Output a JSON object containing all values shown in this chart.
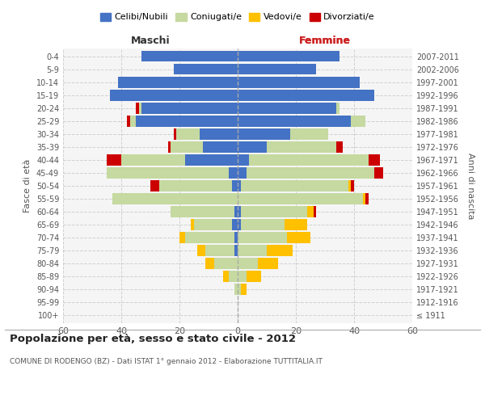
{
  "age_groups": [
    "100+",
    "95-99",
    "90-94",
    "85-89",
    "80-84",
    "75-79",
    "70-74",
    "65-69",
    "60-64",
    "55-59",
    "50-54",
    "45-49",
    "40-44",
    "35-39",
    "30-34",
    "25-29",
    "20-24",
    "15-19",
    "10-14",
    "5-9",
    "0-4"
  ],
  "birth_years": [
    "≤ 1911",
    "1912-1916",
    "1917-1921",
    "1922-1926",
    "1927-1931",
    "1932-1936",
    "1937-1941",
    "1942-1946",
    "1947-1951",
    "1952-1956",
    "1957-1961",
    "1962-1966",
    "1967-1971",
    "1972-1976",
    "1977-1981",
    "1982-1986",
    "1987-1991",
    "1992-1996",
    "1997-2001",
    "2002-2006",
    "2007-2011"
  ],
  "male": {
    "celibi": [
      0,
      0,
      0,
      0,
      0,
      1,
      1,
      2,
      1,
      0,
      2,
      3,
      18,
      12,
      13,
      35,
      33,
      44,
      41,
      22,
      33
    ],
    "coniugati": [
      0,
      0,
      1,
      3,
      8,
      10,
      17,
      13,
      22,
      43,
      25,
      42,
      22,
      11,
      8,
      2,
      1,
      0,
      0,
      0,
      0
    ],
    "vedovi": [
      0,
      0,
      0,
      2,
      3,
      3,
      2,
      1,
      0,
      0,
      0,
      0,
      0,
      0,
      0,
      0,
      0,
      0,
      0,
      0,
      0
    ],
    "divorziati": [
      0,
      0,
      0,
      0,
      0,
      0,
      0,
      0,
      0,
      0,
      3,
      0,
      5,
      1,
      1,
      1,
      1,
      0,
      0,
      0,
      0
    ]
  },
  "female": {
    "nubili": [
      0,
      0,
      0,
      0,
      0,
      0,
      0,
      1,
      1,
      0,
      1,
      3,
      4,
      10,
      18,
      39,
      34,
      47,
      42,
      27,
      35
    ],
    "coniugate": [
      0,
      0,
      1,
      3,
      7,
      10,
      17,
      15,
      23,
      43,
      37,
      44,
      41,
      24,
      13,
      5,
      1,
      0,
      0,
      0,
      0
    ],
    "vedove": [
      0,
      0,
      2,
      5,
      7,
      9,
      8,
      8,
      2,
      1,
      1,
      0,
      0,
      0,
      0,
      0,
      0,
      0,
      0,
      0,
      0
    ],
    "divorziate": [
      0,
      0,
      0,
      0,
      0,
      0,
      0,
      0,
      1,
      1,
      1,
      3,
      4,
      2,
      0,
      0,
      0,
      0,
      0,
      0,
      0
    ]
  },
  "colors": {
    "celibi": "#4472c4",
    "coniugati": "#c5d9a0",
    "vedovi": "#ffc000",
    "divorziati": "#cc0000"
  },
  "xlim": 60,
  "title": "Popolazione per età, sesso e stato civile - 2012",
  "subtitle": "COMUNE DI RODENGO (BZ) - Dati ISTAT 1° gennaio 2012 - Elaborazione TUTTITALIA.IT",
  "ylabel_left": "Fasce di età",
  "ylabel_right": "Anni di nascita",
  "xlabel_left": "Maschi",
  "xlabel_right": "Femmine",
  "legend_labels": [
    "Celibi/Nubili",
    "Coniugati/e",
    "Vedovi/e",
    "Divorziati/e"
  ],
  "bg_color": "#ffffff",
  "grid_color": "#cccccc",
  "bar_height": 0.85
}
